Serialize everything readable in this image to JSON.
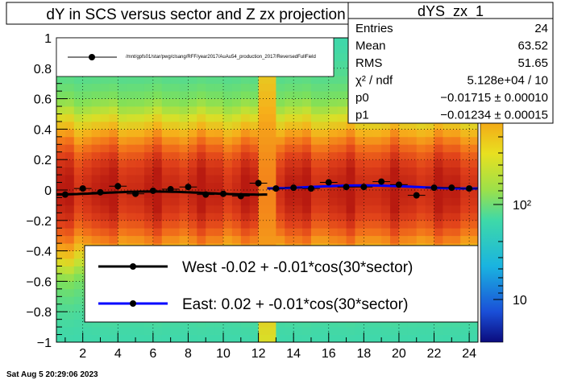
{
  "chart_data": {
    "type": "heatmap",
    "title": "dY in SCS versus sector and Z zx projection",
    "xlabel": "",
    "ylabel": "",
    "xlim": [
      0.5,
      24.5
    ],
    "ylim": [
      -1,
      1
    ],
    "x_ticks": [
      2,
      4,
      6,
      8,
      10,
      12,
      14,
      16,
      18,
      20,
      22,
      24
    ],
    "y_ticks": [
      "-1",
      "-0.8",
      "-0.6",
      "-0.4",
      "-0.2",
      "0",
      "0.2",
      "0.4",
      "0.6",
      "0.8",
      "1"
    ],
    "palette_ticks": [
      "10",
      "10²"
    ],
    "grid": true,
    "stats": {
      "name": "dYS_zx_1",
      "rows": [
        {
          "label": "Entries",
          "value": "24"
        },
        {
          "label": "Mean",
          "value": "63.52"
        },
        {
          "label": "RMS",
          "value": "51.65"
        },
        {
          "label": "χ² / ndf",
          "value": "5.128e+04 / 10"
        },
        {
          "label": "p0",
          "value": "−0.01715  ± 0.00010"
        },
        {
          "label": "p1",
          "value": "−0.01234  ± 0.00015"
        }
      ]
    },
    "points": [
      {
        "x": 1,
        "y": -0.03
      },
      {
        "x": 2,
        "y": 0.01
      },
      {
        "x": 3,
        "y": -0.015
      },
      {
        "x": 4,
        "y": 0.025
      },
      {
        "x": 5,
        "y": -0.025
      },
      {
        "x": 6,
        "y": -0.005
      },
      {
        "x": 7,
        "y": 0.005
      },
      {
        "x": 8,
        "y": 0.02
      },
      {
        "x": 9,
        "y": -0.03
      },
      {
        "x": 10,
        "y": -0.025
      },
      {
        "x": 11,
        "y": -0.04
      },
      {
        "x": 12,
        "y": 0.045
      },
      {
        "x": 13,
        "y": 0.01
      },
      {
        "x": 14,
        "y": 0.015
      },
      {
        "x": 15,
        "y": 0.01
      },
      {
        "x": 16,
        "y": 0.05
      },
      {
        "x": 17,
        "y": 0.02
      },
      {
        "x": 18,
        "y": 0.02
      },
      {
        "x": 19,
        "y": 0.055
      },
      {
        "x": 20,
        "y": 0.035
      },
      {
        "x": 21,
        "y": -0.035
      },
      {
        "x": 22,
        "y": 0.015
      },
      {
        "x": 23,
        "y": 0.015
      },
      {
        "x": 24,
        "y": 0.01
      }
    ],
    "series": [
      {
        "name": "West -0.02 + -0.01*cos(30*sector)",
        "a": -0.02,
        "b": -0.01,
        "range": [
          0.5,
          12.5
        ],
        "color": "#000000"
      },
      {
        "name": "East:  0.02 + -0.01*cos(30*sector)",
        "a": 0.02,
        "b": -0.01,
        "range": [
          12.5,
          24.5
        ],
        "color": "#0000ff"
      }
    ],
    "legend_top": "/mnt/gpfs01/star/pwg/clsang/RFF/year2017/AuAu54_production_2017/ReversedFullField",
    "legend_placement": "top-left / bottom",
    "highlight_column": 12.5
  },
  "footer": {
    "timestamp": "Sat Aug  5 20:29:06 2023"
  }
}
